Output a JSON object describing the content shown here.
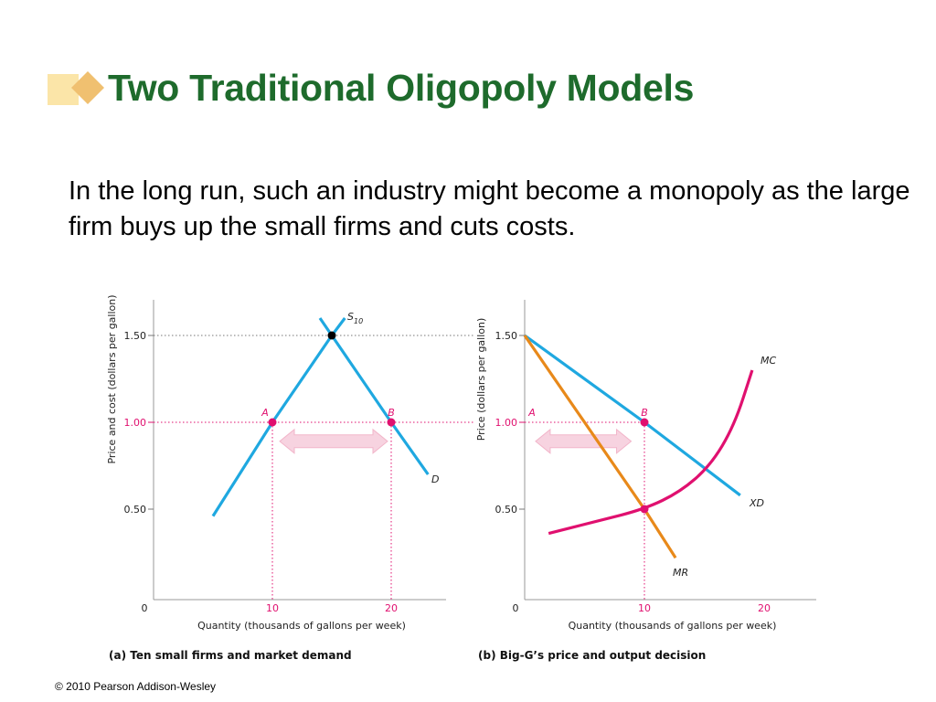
{
  "slide": {
    "title": "Two Traditional Oligopoly Models",
    "body": "In the long run, such an industry might become a monopoly as the large firm buys up the small firms and cuts costs.",
    "copyright": "© 2010 Pearson Addison-Wesley"
  },
  "colors": {
    "title": "#1e6b2c",
    "blue_curve": "#1fa8e0",
    "orange_curve": "#e8891a",
    "magenta_curve": "#e0106f",
    "arrow_fill": "#f7d3e0"
  },
  "chart_data": [
    {
      "type": "line",
      "caption": "(a) Ten small firms and market demand",
      "xlabel": "Quantity (thousands of gallons per week)",
      "ylabel": "Price and cost (dollars per gallon)",
      "xlim": [
        0,
        25
      ],
      "ylim": [
        0,
        1.65
      ],
      "xticks": [
        {
          "v": 0,
          "label": "0"
        },
        {
          "v": 10,
          "label": "10"
        },
        {
          "v": 20,
          "label": "20"
        }
      ],
      "yticks": [
        {
          "v": 0.5,
          "label": "0.50"
        },
        {
          "v": 1.0,
          "label": "1.00"
        },
        {
          "v": 1.5,
          "label": "1.50"
        }
      ],
      "series": [
        {
          "name": "S10",
          "label_main": "S",
          "label_sub": "10",
          "color": "#1fa8e0",
          "points": [
            [
              5,
              0.46
            ],
            [
              10,
              1.0
            ],
            [
              15,
              1.5
            ],
            [
              16.1,
              1.6
            ]
          ]
        },
        {
          "name": "D",
          "label_main": "D",
          "color": "#1fa8e0",
          "points": [
            [
              14.0,
              1.6
            ],
            [
              15,
              1.5
            ],
            [
              20,
              1.0
            ],
            [
              23.1,
              0.7
            ]
          ]
        }
      ],
      "points": [
        {
          "label": "A",
          "x": 10,
          "y": 1.0
        },
        {
          "label": "B",
          "x": 20,
          "y": 1.0
        },
        {
          "label": "",
          "x": 15,
          "y": 1.5
        }
      ],
      "arrow": {
        "from": 10,
        "to": 20,
        "y": 0.88
      }
    },
    {
      "type": "line",
      "caption": "(b) Big-G’s price and output decision",
      "xlabel": "Quantity (thousands of gallons per week)",
      "ylabel": "Price (dollars per gallon)",
      "xlim": [
        0,
        23
      ],
      "ylim": [
        0,
        1.65
      ],
      "xticks": [
        {
          "v": 0,
          "label": "0"
        },
        {
          "v": 10,
          "label": "10"
        },
        {
          "v": 20,
          "label": "20"
        }
      ],
      "yticks": [
        {
          "v": 0.5,
          "label": "0.50"
        },
        {
          "v": 1.0,
          "label": "1.00"
        },
        {
          "v": 1.5,
          "label": "1.50"
        }
      ],
      "series": [
        {
          "name": "XD",
          "label_main": "XD",
          "color": "#1fa8e0",
          "points": [
            [
              0,
              1.5
            ],
            [
              10,
              1.0
            ],
            [
              18,
              0.58
            ]
          ]
        },
        {
          "name": "MR",
          "label_main": "MR",
          "color": "#e8891a",
          "points": [
            [
              0,
              1.5
            ],
            [
              10,
              0.5
            ],
            [
              12.6,
              0.22
            ]
          ]
        },
        {
          "name": "MC",
          "label_main": "MC",
          "color": "#e0106f",
          "curve": true,
          "points": [
            [
              2,
              0.36
            ],
            [
              6,
              0.43
            ],
            [
              10,
              0.5
            ],
            [
              13,
              0.6
            ],
            [
              15.5,
              0.75
            ],
            [
              17.5,
              0.98
            ],
            [
              19,
              1.3
            ]
          ]
        }
      ],
      "points": [
        {
          "label": "A",
          "x": 0,
          "y": 1.0,
          "dot": false
        },
        {
          "label": "B",
          "x": 10,
          "y": 1.0
        },
        {
          "label": "",
          "x": 10,
          "y": 0.5
        }
      ],
      "arrow": {
        "from": 0.3,
        "to": 9.2,
        "y": 0.88
      }
    }
  ]
}
